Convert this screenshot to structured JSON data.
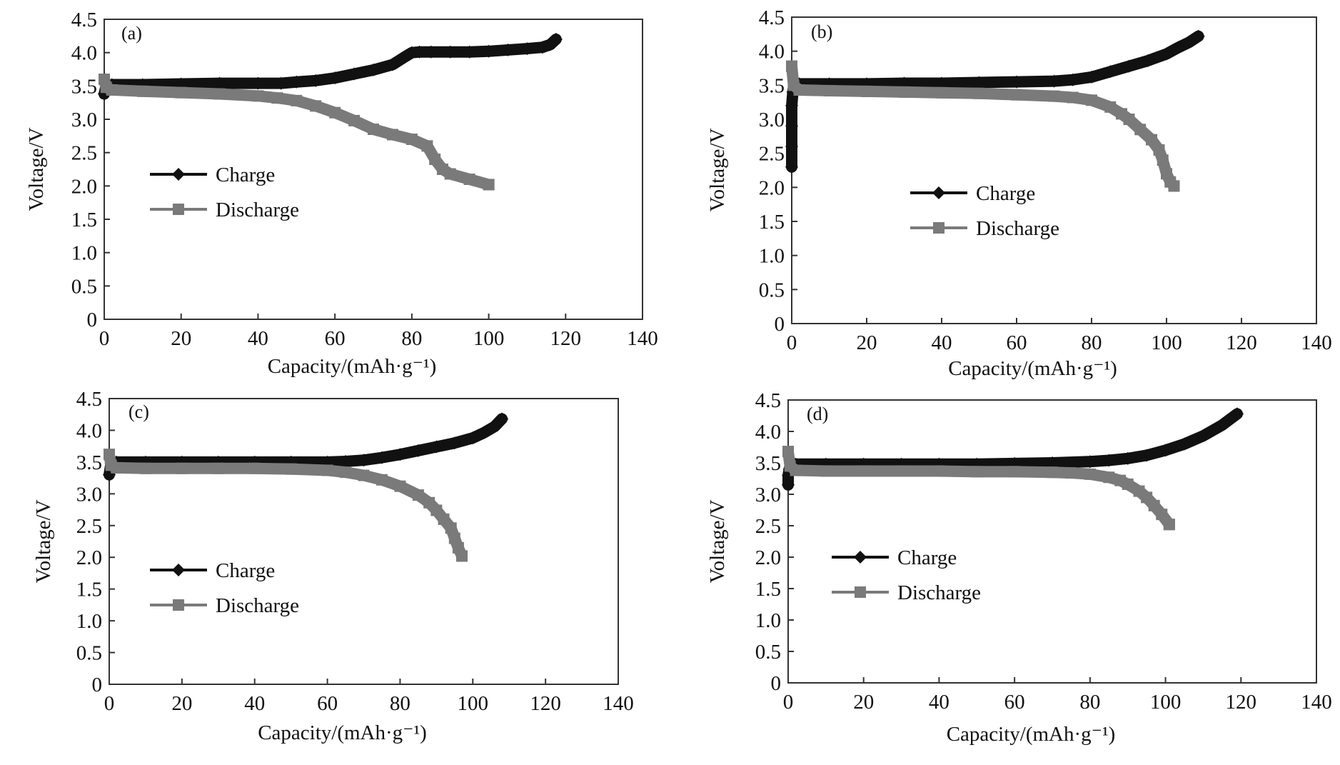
{
  "colors": {
    "charge": "#111111",
    "discharge": "#7a7a7a",
    "frame": "#333333"
  },
  "chart_data": [
    {
      "type": "line",
      "panel_label": "(a)",
      "xlabel": "Capacity/(mAh·g⁻¹)",
      "ylabel": "Voltage/V",
      "xlim": [
        0,
        140
      ],
      "ylim": [
        0,
        4.5
      ],
      "xticks": [
        "0",
        "20",
        "40",
        "60",
        "80",
        "100",
        "120",
        "140"
      ],
      "yticks": [
        "0",
        "0.5",
        "1.0",
        "1.5",
        "2.0",
        "2.5",
        "3.0",
        "3.5",
        "4.0",
        "4.5"
      ],
      "grid": false,
      "legend_position": "left-middle",
      "series": [
        {
          "name": "Charge",
          "marker": "diamond",
          "color": "#111111",
          "x": [
            0,
            0.5,
            2,
            10,
            20,
            30,
            40,
            46,
            50,
            55,
            60,
            65,
            70,
            75,
            78,
            80,
            82,
            85,
            90,
            95,
            100,
            105,
            110,
            114,
            116,
            117.5
          ],
          "y": [
            3.38,
            3.5,
            3.52,
            3.52,
            3.53,
            3.54,
            3.54,
            3.54,
            3.56,
            3.58,
            3.62,
            3.68,
            3.74,
            3.82,
            3.93,
            4.0,
            4.01,
            4.01,
            4.01,
            4.01,
            4.02,
            4.04,
            4.06,
            4.08,
            4.12,
            4.2
          ]
        },
        {
          "name": "Discharge",
          "marker": "square",
          "color": "#7a7a7a",
          "x": [
            0,
            0.5,
            2,
            10,
            20,
            30,
            40,
            45,
            50,
            55,
            60,
            65,
            70,
            75,
            80,
            84,
            86,
            88,
            90,
            95,
            100
          ],
          "y": [
            3.6,
            3.48,
            3.44,
            3.42,
            3.4,
            3.38,
            3.35,
            3.32,
            3.28,
            3.2,
            3.1,
            2.98,
            2.85,
            2.77,
            2.7,
            2.6,
            2.4,
            2.25,
            2.18,
            2.1,
            2.02
          ]
        }
      ]
    },
    {
      "type": "line",
      "panel_label": "(b)",
      "xlabel": "Capacity/(mAh·g⁻¹)",
      "ylabel": "Voltage/V",
      "xlim": [
        0,
        140
      ],
      "ylim": [
        0,
        4.5
      ],
      "xticks": [
        "0",
        "20",
        "40",
        "60",
        "80",
        "100",
        "120",
        "140"
      ],
      "yticks": [
        "0",
        "0.5",
        "1.0",
        "1.5",
        "2.0",
        "2.5",
        "3.0",
        "3.5",
        "4.0",
        "4.5"
      ],
      "grid": false,
      "legend_position": "center",
      "series": [
        {
          "name": "Charge",
          "marker": "diamond",
          "color": "#111111",
          "x": [
            0,
            0,
            0,
            0,
            0.3,
            0.6,
            1,
            2,
            10,
            20,
            30,
            40,
            50,
            60,
            70,
            75,
            80,
            85,
            90,
            95,
            100,
            103,
            106,
            108.5
          ],
          "y": [
            2.3,
            2.6,
            2.9,
            3.2,
            3.4,
            3.5,
            3.52,
            3.52,
            3.52,
            3.52,
            3.53,
            3.53,
            3.54,
            3.55,
            3.56,
            3.58,
            3.62,
            3.7,
            3.78,
            3.86,
            3.96,
            4.05,
            4.13,
            4.22
          ]
        },
        {
          "name": "Discharge",
          "marker": "square",
          "color": "#7a7a7a",
          "x": [
            0,
            0.5,
            2,
            10,
            20,
            30,
            40,
            50,
            60,
            70,
            75,
            80,
            85,
            88,
            90,
            93,
            96,
            98,
            99,
            100,
            101,
            102
          ],
          "y": [
            3.78,
            3.5,
            3.43,
            3.42,
            3.41,
            3.4,
            3.39,
            3.38,
            3.36,
            3.34,
            3.32,
            3.28,
            3.18,
            3.08,
            3.0,
            2.85,
            2.7,
            2.55,
            2.4,
            2.2,
            2.08,
            2.02
          ]
        }
      ]
    },
    {
      "type": "line",
      "panel_label": "(c)",
      "xlabel": "Capacity/(mAh·g⁻¹)",
      "ylabel": "Voltage/V",
      "xlim": [
        0,
        140
      ],
      "ylim": [
        0,
        4.5
      ],
      "xticks": [
        "0",
        "20",
        "40",
        "60",
        "80",
        "100",
        "120",
        "140"
      ],
      "yticks": [
        "0",
        "0.5",
        "1.0",
        "1.5",
        "2.0",
        "2.5",
        "3.0",
        "3.5",
        "4.0",
        "4.5"
      ],
      "grid": false,
      "legend_position": "left-middle",
      "series": [
        {
          "name": "Charge",
          "marker": "diamond",
          "color": "#111111",
          "x": [
            0,
            0.5,
            2,
            10,
            20,
            30,
            40,
            50,
            60,
            65,
            70,
            75,
            80,
            85,
            90,
            95,
            100,
            103,
            106,
            108
          ],
          "y": [
            3.3,
            3.48,
            3.5,
            3.5,
            3.5,
            3.5,
            3.5,
            3.5,
            3.5,
            3.51,
            3.53,
            3.57,
            3.62,
            3.68,
            3.74,
            3.8,
            3.88,
            3.96,
            4.06,
            4.18
          ]
        },
        {
          "name": "Discharge",
          "marker": "square",
          "color": "#7a7a7a",
          "x": [
            0,
            0.5,
            2,
            10,
            20,
            30,
            40,
            50,
            60,
            65,
            70,
            75,
            80,
            85,
            88,
            90,
            92,
            94,
            95,
            96,
            97
          ],
          "y": [
            3.62,
            3.45,
            3.41,
            3.4,
            3.4,
            3.4,
            3.4,
            3.39,
            3.37,
            3.34,
            3.29,
            3.22,
            3.12,
            2.98,
            2.86,
            2.74,
            2.6,
            2.46,
            2.3,
            2.15,
            2.02
          ]
        }
      ]
    },
    {
      "type": "line",
      "panel_label": "(d)",
      "xlabel": "Capacity/(mAh·g⁻¹)",
      "ylabel": "Voltage/V",
      "xlim": [
        0,
        140
      ],
      "ylim": [
        0,
        4.5
      ],
      "xticks": [
        "0",
        "20",
        "40",
        "60",
        "80",
        "100",
        "120",
        "140"
      ],
      "yticks": [
        "0",
        "0.5",
        "1.0",
        "1.5",
        "2.0",
        "2.5",
        "3.0",
        "3.5",
        "4.0",
        "4.5"
      ],
      "grid": false,
      "legend_position": "left-middle",
      "series": [
        {
          "name": "Charge",
          "marker": "diamond",
          "color": "#111111",
          "x": [
            0,
            0,
            0.3,
            0.6,
            1,
            2,
            10,
            20,
            30,
            40,
            50,
            60,
            70,
            80,
            85,
            90,
            95,
            100,
            105,
            110,
            115,
            119
          ],
          "y": [
            3.15,
            3.3,
            3.4,
            3.45,
            3.47,
            3.48,
            3.48,
            3.48,
            3.48,
            3.48,
            3.48,
            3.49,
            3.5,
            3.52,
            3.54,
            3.57,
            3.62,
            3.7,
            3.8,
            3.93,
            4.1,
            4.28
          ]
        },
        {
          "name": "Discharge",
          "marker": "square",
          "color": "#7a7a7a",
          "x": [
            0,
            0.5,
            2,
            10,
            20,
            30,
            40,
            50,
            60,
            70,
            75,
            80,
            85,
            88,
            90,
            93,
            95,
            97,
            99,
            101
          ],
          "y": [
            3.68,
            3.45,
            3.38,
            3.37,
            3.37,
            3.37,
            3.37,
            3.36,
            3.36,
            3.35,
            3.34,
            3.32,
            3.27,
            3.22,
            3.16,
            3.05,
            2.95,
            2.82,
            2.68,
            2.52
          ]
        }
      ]
    }
  ]
}
